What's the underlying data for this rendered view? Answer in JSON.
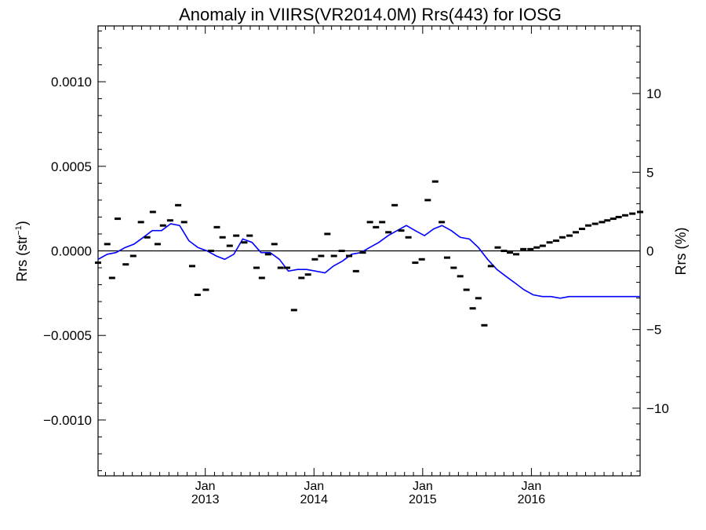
{
  "chart_data": {
    "type": "scatter",
    "title": "Anomaly in VIIRS(VR2014.0M) Rrs(443) for IOSG",
    "ylabel_left": "Rrs (str",
    "ylabel_left_sup": "−1",
    "ylabel_left_close": ")",
    "ylabel_right": "Rrs (%)",
    "left_ylim": [
      -0.00133,
      0.00133
    ],
    "right_ylim": [
      -14.3,
      14.3
    ],
    "xlim": [
      "2012-01-07",
      "2016-12-31"
    ],
    "left_yticks": [
      {
        "value": 0.001,
        "label": "0.0010"
      },
      {
        "value": 0.0005,
        "label": "0.0005"
      },
      {
        "value": 0.0,
        "label": "0.0000"
      },
      {
        "value": -0.0005,
        "label": "−0.0005"
      },
      {
        "value": -0.001,
        "label": "−0.0010"
      }
    ],
    "right_yticks": [
      {
        "value": 10,
        "label": "10"
      },
      {
        "value": 5,
        "label": "5"
      },
      {
        "value": 0,
        "label": "0"
      },
      {
        "value": -5,
        "label": "−5"
      },
      {
        "value": -10,
        "label": "−10"
      }
    ],
    "xticks": [
      {
        "date": "2013-01-01",
        "month": "Jan",
        "year": "2013"
      },
      {
        "date": "2014-01-01",
        "month": "Jan",
        "year": "2014"
      },
      {
        "date": "2015-01-01",
        "month": "Jan",
        "year": "2015"
      },
      {
        "date": "2016-01-01",
        "month": "Jan",
        "year": "2016"
      }
    ],
    "zero_line": 0.0,
    "series": [
      {
        "type": "scatter",
        "marker": "dash",
        "color": "#000000",
        "x": [
          "2012-01-07",
          "2012-02-07",
          "2012-02-23",
          "2012-03-13",
          "2012-04-09",
          "2012-05-04",
          "2012-05-30",
          "2012-06-20",
          "2012-07-09",
          "2012-07-25",
          "2012-08-12",
          "2012-09-05",
          "2012-10-02",
          "2012-10-22",
          "2012-11-18",
          "2012-12-06",
          "2013-01-03",
          "2013-01-20",
          "2013-02-09",
          "2013-02-28",
          "2013-03-24",
          "2013-04-15",
          "2013-05-12",
          "2013-05-30",
          "2013-06-22",
          "2013-07-10",
          "2013-07-31",
          "2013-08-21",
          "2013-09-11",
          "2013-10-03",
          "2013-10-26",
          "2013-11-20",
          "2013-12-12",
          "2014-01-04",
          "2014-01-25",
          "2014-02-15",
          "2014-03-09",
          "2014-04-04",
          "2014-04-29",
          "2014-05-22",
          "2014-06-14",
          "2014-07-08",
          "2014-07-28",
          "2014-08-18",
          "2014-09-08",
          "2014-09-29",
          "2014-10-21",
          "2014-11-14",
          "2014-12-07",
          "2014-12-29",
          "2015-01-18",
          "2015-02-12",
          "2015-03-06",
          "2015-03-24",
          "2015-04-15",
          "2015-05-07",
          "2015-05-28",
          "2015-06-18",
          "2015-07-07",
          "2015-07-27",
          "2015-08-18",
          "2015-09-10",
          "2015-10-01",
          "2015-10-21",
          "2015-11-11",
          "2015-12-05",
          "2015-12-29",
          "2016-01-19",
          "2016-02-08",
          "2016-03-02",
          "2016-03-24",
          "2016-04-14",
          "2016-05-08",
          "2016-05-29",
          "2016-06-19",
          "2016-07-10",
          "2016-08-02",
          "2016-08-25",
          "2016-09-12",
          "2016-10-02",
          "2016-10-20",
          "2016-11-11",
          "2016-12-05",
          "2016-12-31"
        ],
        "y": [
          -7e-05,
          4e-05,
          -0.00016,
          0.00019,
          -8e-05,
          -3e-05,
          0.00017,
          8e-05,
          0.00023,
          4e-05,
          0.00015,
          0.00018,
          0.00027,
          0.00017,
          -9e-05,
          -0.00026,
          -0.00023,
          0.0,
          0.00014,
          8e-05,
          3e-05,
          9e-05,
          5e-05,
          9e-05,
          -0.0001,
          -0.00016,
          -2e-05,
          4e-05,
          -0.0001,
          -0.0001,
          -0.00035,
          -0.00016,
          -0.00014,
          -5e-05,
          -3e-05,
          0.0001,
          -3e-05,
          0.0,
          -3e-05,
          -0.00012,
          -1e-05,
          0.00017,
          0.00014,
          0.00017,
          0.00011,
          0.00027,
          0.00012,
          8e-05,
          -7e-05,
          -5e-05,
          0.0003,
          0.00041,
          0.00017,
          -4e-05,
          -0.0001,
          -0.00015,
          -0.00023,
          -0.00034,
          -0.00028,
          -0.00044,
          -9e-05,
          2e-05,
          0.0,
          -1e-05,
          -2e-05,
          1e-05,
          1e-05,
          2e-05,
          3e-05,
          5e-05,
          6e-05,
          8e-05,
          9e-05,
          0.00011,
          0.00013,
          0.00015,
          0.00016,
          0.00017,
          0.00018,
          0.00019,
          0.0002,
          0.00021,
          0.00022,
          0.00023
        ]
      },
      {
        "type": "line",
        "color": "#0000ff",
        "x": [
          "2012-01-07",
          "2012-02-07",
          "2012-03-07",
          "2012-04-07",
          "2012-05-07",
          "2012-06-07",
          "2012-07-07",
          "2012-08-07",
          "2012-09-07",
          "2012-10-07",
          "2012-11-07",
          "2012-12-07",
          "2013-01-07",
          "2013-02-07",
          "2013-03-07",
          "2013-04-07",
          "2013-05-07",
          "2013-06-07",
          "2013-07-07",
          "2013-08-07",
          "2013-09-07",
          "2013-10-07",
          "2013-11-07",
          "2013-12-07",
          "2014-01-07",
          "2014-02-07",
          "2014-03-07",
          "2014-04-07",
          "2014-05-07",
          "2014-06-07",
          "2014-07-07",
          "2014-08-07",
          "2014-09-07",
          "2014-10-07",
          "2014-11-07",
          "2014-12-07",
          "2015-01-07",
          "2015-02-07",
          "2015-03-07",
          "2015-04-07",
          "2015-05-07",
          "2015-06-07",
          "2015-07-07",
          "2015-08-07",
          "2015-09-07",
          "2015-10-07",
          "2015-11-07",
          "2015-12-07",
          "2016-01-07",
          "2016-02-07",
          "2016-03-07",
          "2016-04-07",
          "2016-05-07",
          "2016-06-07",
          "2016-07-07",
          "2016-08-07",
          "2016-09-07",
          "2016-10-07",
          "2016-11-07",
          "2016-12-07",
          "2016-12-31"
        ],
        "y": [
          -5e-05,
          -2e-05,
          -1e-05,
          2e-05,
          4e-05,
          8e-05,
          0.00012,
          0.00012,
          0.00016,
          0.00015,
          6e-05,
          2e-05,
          0.0,
          -3e-05,
          -5e-05,
          -2e-05,
          7e-05,
          5e-05,
          -1e-05,
          -1e-05,
          -5e-05,
          -0.00012,
          -0.00011,
          -0.00011,
          -0.00012,
          -0.00013,
          -9e-05,
          -6e-05,
          -2e-05,
          -1e-05,
          2e-05,
          5e-05,
          9e-05,
          0.00012,
          0.00015,
          0.00012,
          9e-05,
          0.00013,
          0.00015,
          0.00012,
          8e-05,
          7e-05,
          2e-05,
          -5e-05,
          -0.00011,
          -0.00015,
          -0.00019,
          -0.00023,
          -0.00026,
          -0.00027,
          -0.00027,
          -0.00028,
          -0.00027,
          -0.00027,
          -0.00027,
          -0.00027,
          -0.00027,
          -0.00027,
          -0.00027,
          -0.00027,
          -0.00027
        ]
      }
    ]
  }
}
